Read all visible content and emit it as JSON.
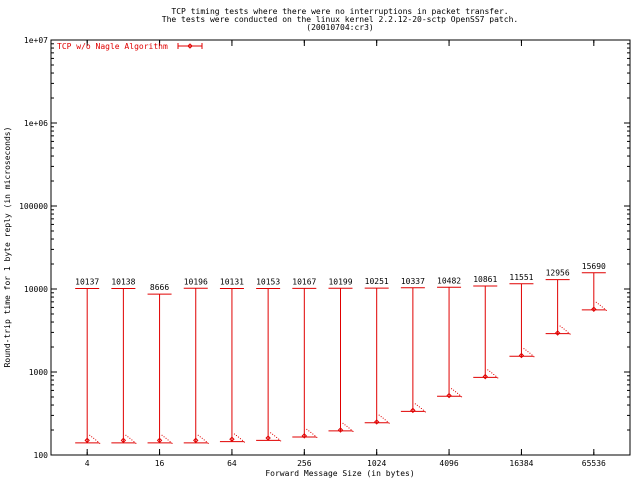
{
  "chart_data": {
    "type": "scatter",
    "title": [
      "TCP timing tests where there were no interruptions in packet transfer.",
      "The tests were conducted on the linux kernel 2.2.12-20-sctp OpenSS7 patch.",
      "(20010704:cr3)"
    ],
    "xlabel": "Forward Message Size (in bytes)",
    "ylabel": "Round-trip time for 1 byte reply (in microseconds)",
    "x_scale": "log2",
    "y_scale": "log10",
    "xlim": [
      2,
      131072
    ],
    "ylim": [
      100,
      10000000
    ],
    "x_ticks": [
      "4",
      "16",
      "64",
      "256",
      "1024",
      "4096",
      "16384",
      "65536"
    ],
    "y_ticks": [
      "100",
      "1000",
      "10000",
      "100000",
      "1e+06",
      "1e+07"
    ],
    "series": [
      {
        "name": "TCP w/o Nagle Algorithm",
        "color": "#e00000",
        "points": [
          {
            "x": 4,
            "min": 140,
            "max": 10137,
            "median": 150,
            "label": "10137"
          },
          {
            "x": 8,
            "min": 140,
            "max": 10138,
            "median": 150,
            "label": "10138"
          },
          {
            "x": 16,
            "min": 140,
            "max": 8666,
            "median": 150,
            "label": "8666"
          },
          {
            "x": 32,
            "min": 140,
            "max": 10196,
            "median": 150,
            "label": "10196"
          },
          {
            "x": 64,
            "min": 145,
            "max": 10131,
            "median": 155,
            "label": "10131"
          },
          {
            "x": 128,
            "min": 150,
            "max": 10153,
            "median": 160,
            "label": "10153"
          },
          {
            "x": 256,
            "min": 165,
            "max": 10167,
            "median": 170,
            "label": "10167"
          },
          {
            "x": 512,
            "min": 195,
            "max": 10199,
            "median": 200,
            "label": "10199"
          },
          {
            "x": 1024,
            "min": 245,
            "max": 10251,
            "median": 250,
            "label": "10251"
          },
          {
            "x": 2048,
            "min": 335,
            "max": 10337,
            "median": 345,
            "label": "10337"
          },
          {
            "x": 4096,
            "min": 510,
            "max": 10482,
            "median": 520,
            "label": "10482"
          },
          {
            "x": 8192,
            "min": 860,
            "max": 10861,
            "median": 880,
            "label": "10861"
          },
          {
            "x": 16384,
            "min": 1550,
            "max": 11551,
            "median": 1580,
            "label": "11551"
          },
          {
            "x": 32768,
            "min": 2900,
            "max": 12956,
            "median": 2950,
            "label": "12956"
          },
          {
            "x": 65536,
            "min": 5600,
            "max": 15690,
            "median": 5700,
            "label": "15690"
          }
        ]
      }
    ],
    "grid": false,
    "legend_position": "top-left"
  }
}
